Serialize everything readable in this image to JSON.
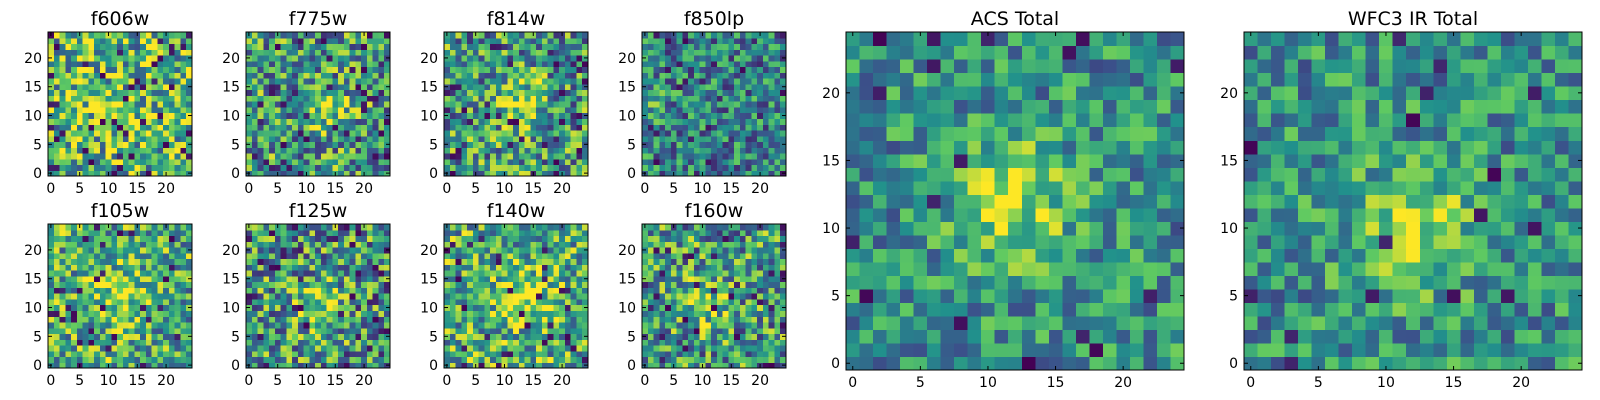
{
  "figure": {
    "colormap": "viridis",
    "colormap_stops": [
      "#440154",
      "#3b528b",
      "#21918c",
      "#5ec962",
      "#fde725"
    ]
  },
  "chart_data": [
    {
      "type": "heatmap",
      "title": "f606w",
      "grid_size": 25,
      "xlim": [
        -0.5,
        24.5
      ],
      "ylim": [
        -0.5,
        24.5
      ],
      "xticks": [
        "0",
        "5",
        "10",
        "15",
        "20"
      ],
      "yticks": [
        "0",
        "5",
        "10",
        "15",
        "20"
      ],
      "hotspot": [
        11,
        10
      ],
      "contrast": "high",
      "seed": 11
    },
    {
      "type": "heatmap",
      "title": "f775w",
      "grid_size": 25,
      "xlim": [
        -0.5,
        24.5
      ],
      "ylim": [
        -0.5,
        24.5
      ],
      "xticks": [
        "0",
        "5",
        "10",
        "15",
        "20"
      ],
      "yticks": [
        "0",
        "5",
        "10",
        "15",
        "20"
      ],
      "hotspot": [
        13,
        11
      ],
      "contrast": "medium",
      "seed": 23
    },
    {
      "type": "heatmap",
      "title": "f814w",
      "grid_size": 25,
      "xlim": [
        -0.5,
        24.5
      ],
      "ylim": [
        -0.5,
        24.5
      ],
      "xticks": [
        "0",
        "5",
        "10",
        "15",
        "20"
      ],
      "yticks": [
        "0",
        "5",
        "10",
        "15",
        "20"
      ],
      "hotspot": [
        13,
        12
      ],
      "contrast": "medium",
      "seed": 37
    },
    {
      "type": "heatmap",
      "title": "f850lp",
      "grid_size": 25,
      "xlim": [
        -0.5,
        24.5
      ],
      "ylim": [
        -0.5,
        24.5
      ],
      "xticks": [
        "0",
        "5",
        "10",
        "15",
        "20"
      ],
      "yticks": [
        "0",
        "5",
        "10",
        "15",
        "20"
      ],
      "hotspot": [
        1,
        12
      ],
      "contrast": "low",
      "seed": 41
    },
    {
      "type": "heatmap",
      "title": "f105w",
      "grid_size": 25,
      "xlim": [
        -0.5,
        24.5
      ],
      "ylim": [
        -0.5,
        24.5
      ],
      "xticks": [
        "0",
        "5",
        "10",
        "15",
        "20"
      ],
      "yticks": [
        "0",
        "5",
        "10",
        "15",
        "20"
      ],
      "hotspot": [
        12,
        12
      ],
      "contrast": "bright",
      "seed": 53
    },
    {
      "type": "heatmap",
      "title": "f125w",
      "grid_size": 25,
      "xlim": [
        -0.5,
        24.5
      ],
      "ylim": [
        -0.5,
        24.5
      ],
      "xticks": [
        "0",
        "5",
        "10",
        "15",
        "20"
      ],
      "yticks": [
        "0",
        "5",
        "10",
        "15",
        "20"
      ],
      "hotspot": [
        12,
        10
      ],
      "contrast": "medium",
      "seed": 67
    },
    {
      "type": "heatmap",
      "title": "f140w",
      "grid_size": 25,
      "xlim": [
        -0.5,
        24.5
      ],
      "ylim": [
        -0.5,
        24.5
      ],
      "xticks": [
        "0",
        "5",
        "10",
        "15",
        "20"
      ],
      "yticks": [
        "0",
        "5",
        "10",
        "15",
        "20"
      ],
      "hotspot": [
        13,
        12
      ],
      "contrast": "bright",
      "seed": 79
    },
    {
      "type": "heatmap",
      "title": "f160w",
      "grid_size": 25,
      "xlim": [
        -0.5,
        24.5
      ],
      "ylim": [
        -0.5,
        24.5
      ],
      "xticks": [
        "0",
        "5",
        "10",
        "15",
        "20"
      ],
      "yticks": [
        "0",
        "5",
        "10",
        "15",
        "20"
      ],
      "hotspot": [
        11,
        11
      ],
      "contrast": "medium",
      "seed": 83
    },
    {
      "type": "heatmap",
      "title": "ACS Total",
      "grid_size": 25,
      "xlim": [
        -0.5,
        24.5
      ],
      "ylim": [
        -0.5,
        24.5
      ],
      "xticks": [
        "0",
        "5",
        "10",
        "15",
        "20"
      ],
      "yticks": [
        "0",
        "5",
        "10",
        "15",
        "20"
      ],
      "hotspot": [
        12,
        12
      ],
      "contrast": "total",
      "seed": 97
    },
    {
      "type": "heatmap",
      "title": "WFC3 IR Total",
      "grid_size": 25,
      "xlim": [
        -0.5,
        24.5
      ],
      "ylim": [
        -0.5,
        24.5
      ],
      "xticks": [
        "0",
        "5",
        "10",
        "15",
        "20"
      ],
      "yticks": [
        "0",
        "5",
        "10",
        "15",
        "20"
      ],
      "hotspot": [
        12,
        10
      ],
      "contrast": "total",
      "seed": 103
    }
  ]
}
